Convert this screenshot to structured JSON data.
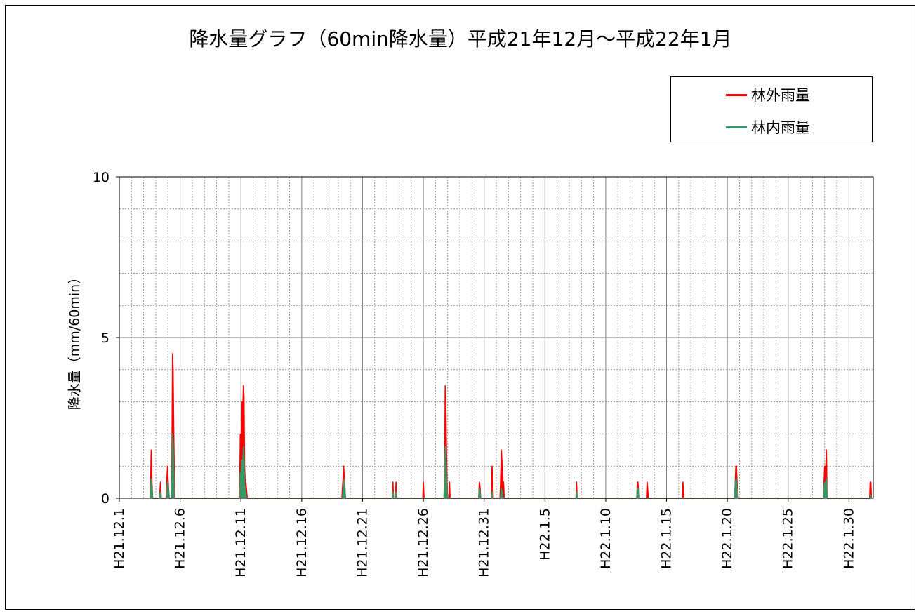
{
  "chart_data": {
    "type": "area",
    "title": "降水量グラフ（60min降水量）平成21年12月～平成22年1月",
    "ylabel": "降水量（mm/60min）",
    "xlabel": "",
    "ylim": [
      0,
      10
    ],
    "yticks": [
      0,
      5,
      10
    ],
    "x_range_days": [
      0,
      62
    ],
    "xtick_labels": [
      "H21.12.1",
      "H21.12.6",
      "H21.12.11",
      "H21.12.16",
      "H21.12.21",
      "H21.12.26",
      "H21.12.31",
      "H22.1.5",
      "H22.1.10",
      "H22.1.15",
      "H22.1.20",
      "H22.1.25",
      "H22.1.30"
    ],
    "xtick_days": [
      0,
      5,
      10,
      15,
      20,
      25,
      30,
      35,
      40,
      45,
      50,
      55,
      60
    ],
    "grid": true,
    "legend_position": "top-right",
    "series": [
      {
        "name": "林外雨量",
        "color": "#ff0000",
        "points": [
          [
            2.55,
            0
          ],
          [
            2.62,
            1.5
          ],
          [
            2.68,
            0.5
          ],
          [
            2.74,
            0
          ],
          [
            3.3,
            0
          ],
          [
            3.38,
            0.5
          ],
          [
            3.45,
            0
          ],
          [
            3.85,
            0
          ],
          [
            3.9,
            0.5
          ],
          [
            3.96,
            1
          ],
          [
            4.02,
            0.5
          ],
          [
            4.1,
            0
          ],
          [
            4.3,
            0
          ],
          [
            4.38,
            4.5
          ],
          [
            4.42,
            4
          ],
          [
            4.48,
            2
          ],
          [
            4.55,
            0
          ],
          [
            9.85,
            0
          ],
          [
            9.9,
            0.5
          ],
          [
            9.95,
            2
          ],
          [
            10.0,
            1.5
          ],
          [
            10.05,
            2
          ],
          [
            10.1,
            3
          ],
          [
            10.15,
            2.5
          ],
          [
            10.2,
            3.5
          ],
          [
            10.25,
            3.2
          ],
          [
            10.3,
            1
          ],
          [
            10.35,
            0.5
          ],
          [
            10.4,
            0.5
          ],
          [
            10.45,
            0.3
          ],
          [
            10.52,
            0
          ],
          [
            18.3,
            0
          ],
          [
            18.38,
            0.5
          ],
          [
            18.45,
            1
          ],
          [
            18.52,
            0.5
          ],
          [
            18.6,
            0
          ],
          [
            22.45,
            0
          ],
          [
            22.5,
            0.5
          ],
          [
            22.55,
            0
          ],
          [
            22.7,
            0
          ],
          [
            22.75,
            0.5
          ],
          [
            22.8,
            0
          ],
          [
            24.95,
            0
          ],
          [
            25.0,
            0.5
          ],
          [
            25.06,
            0
          ],
          [
            26.7,
            0
          ],
          [
            26.75,
            1
          ],
          [
            26.8,
            3.5
          ],
          [
            26.85,
            3
          ],
          [
            26.9,
            1.5
          ],
          [
            26.95,
            0.5
          ],
          [
            27.0,
            0
          ],
          [
            27.1,
            0
          ],
          [
            27.15,
            0.5
          ],
          [
            27.2,
            0
          ],
          [
            29.55,
            0
          ],
          [
            29.6,
            0.5
          ],
          [
            29.65,
            0.4
          ],
          [
            29.72,
            0
          ],
          [
            30.6,
            0
          ],
          [
            30.65,
            1
          ],
          [
            30.7,
            0.5
          ],
          [
            30.75,
            0
          ],
          [
            31.3,
            0
          ],
          [
            31.35,
            0.5
          ],
          [
            31.42,
            1.5
          ],
          [
            31.48,
            1
          ],
          [
            31.55,
            0.5
          ],
          [
            31.6,
            0.5
          ],
          [
            31.65,
            0
          ],
          [
            37.55,
            0
          ],
          [
            37.6,
            0.5
          ],
          [
            37.65,
            0
          ],
          [
            42.55,
            0
          ],
          [
            42.6,
            0.5
          ],
          [
            42.65,
            0.5
          ],
          [
            42.72,
            0
          ],
          [
            43.35,
            0
          ],
          [
            43.4,
            0.5
          ],
          [
            43.45,
            0.3
          ],
          [
            43.5,
            0
          ],
          [
            46.3,
            0
          ],
          [
            46.35,
            0.5
          ],
          [
            46.42,
            0
          ],
          [
            50.6,
            0
          ],
          [
            50.65,
            0.5
          ],
          [
            50.7,
            1
          ],
          [
            50.75,
            1
          ],
          [
            50.8,
            0.5
          ],
          [
            50.9,
            0
          ],
          [
            57.9,
            0
          ],
          [
            57.95,
            0.5
          ],
          [
            58.0,
            1
          ],
          [
            58.05,
            0.5
          ],
          [
            58.1,
            1
          ],
          [
            58.15,
            1.5
          ],
          [
            58.2,
            0
          ],
          [
            61.7,
            0
          ],
          [
            61.75,
            0.5
          ],
          [
            61.8,
            0.5
          ],
          [
            61.85,
            0
          ]
        ]
      },
      {
        "name": "林内雨量",
        "color": "#339966",
        "points": [
          [
            2.56,
            0
          ],
          [
            2.62,
            0.6
          ],
          [
            2.68,
            0.3
          ],
          [
            2.74,
            0
          ],
          [
            3.3,
            0
          ],
          [
            3.38,
            0.2
          ],
          [
            3.45,
            0
          ],
          [
            3.88,
            0
          ],
          [
            3.96,
            0.5
          ],
          [
            4.04,
            0.3
          ],
          [
            4.12,
            0
          ],
          [
            4.3,
            0
          ],
          [
            4.38,
            2
          ],
          [
            4.44,
            1.5
          ],
          [
            4.52,
            0
          ],
          [
            9.9,
            0
          ],
          [
            9.95,
            0.8
          ],
          [
            10.0,
            0.7
          ],
          [
            10.05,
            1
          ],
          [
            10.1,
            1.2
          ],
          [
            10.15,
            0.9
          ],
          [
            10.2,
            1.6
          ],
          [
            10.25,
            1.3
          ],
          [
            10.3,
            0.4
          ],
          [
            10.38,
            0.2
          ],
          [
            10.45,
            0
          ],
          [
            18.35,
            0
          ],
          [
            18.42,
            0.3
          ],
          [
            18.48,
            0.6
          ],
          [
            18.54,
            0.3
          ],
          [
            18.6,
            0
          ],
          [
            22.45,
            0
          ],
          [
            22.5,
            0.2
          ],
          [
            22.55,
            0
          ],
          [
            22.7,
            0
          ],
          [
            22.75,
            0.2
          ],
          [
            22.8,
            0
          ],
          [
            26.7,
            0
          ],
          [
            26.76,
            0.6
          ],
          [
            26.8,
            1.6
          ],
          [
            26.85,
            1.4
          ],
          [
            26.9,
            0.7
          ],
          [
            26.96,
            0.2
          ],
          [
            27.02,
            0
          ],
          [
            29.56,
            0
          ],
          [
            29.6,
            0.3
          ],
          [
            29.66,
            0.2
          ],
          [
            29.72,
            0
          ],
          [
            30.6,
            0
          ],
          [
            30.65,
            0.2
          ],
          [
            30.7,
            0
          ],
          [
            31.35,
            0
          ],
          [
            31.42,
            0.3
          ],
          [
            31.48,
            0.2
          ],
          [
            31.55,
            0
          ],
          [
            37.55,
            0
          ],
          [
            37.6,
            0.2
          ],
          [
            37.65,
            0
          ],
          [
            42.55,
            0
          ],
          [
            42.6,
            0.3
          ],
          [
            42.66,
            0.3
          ],
          [
            42.72,
            0
          ],
          [
            50.6,
            0
          ],
          [
            50.66,
            0.5
          ],
          [
            50.72,
            0.6
          ],
          [
            50.78,
            0.4
          ],
          [
            50.86,
            0
          ],
          [
            57.9,
            0
          ],
          [
            57.96,
            0.4
          ],
          [
            58.02,
            0.5
          ],
          [
            58.08,
            0.4
          ],
          [
            58.14,
            0.6
          ],
          [
            58.2,
            0
          ],
          [
            61.72,
            0
          ],
          [
            61.78,
            0.1
          ],
          [
            61.84,
            0
          ]
        ]
      }
    ]
  }
}
